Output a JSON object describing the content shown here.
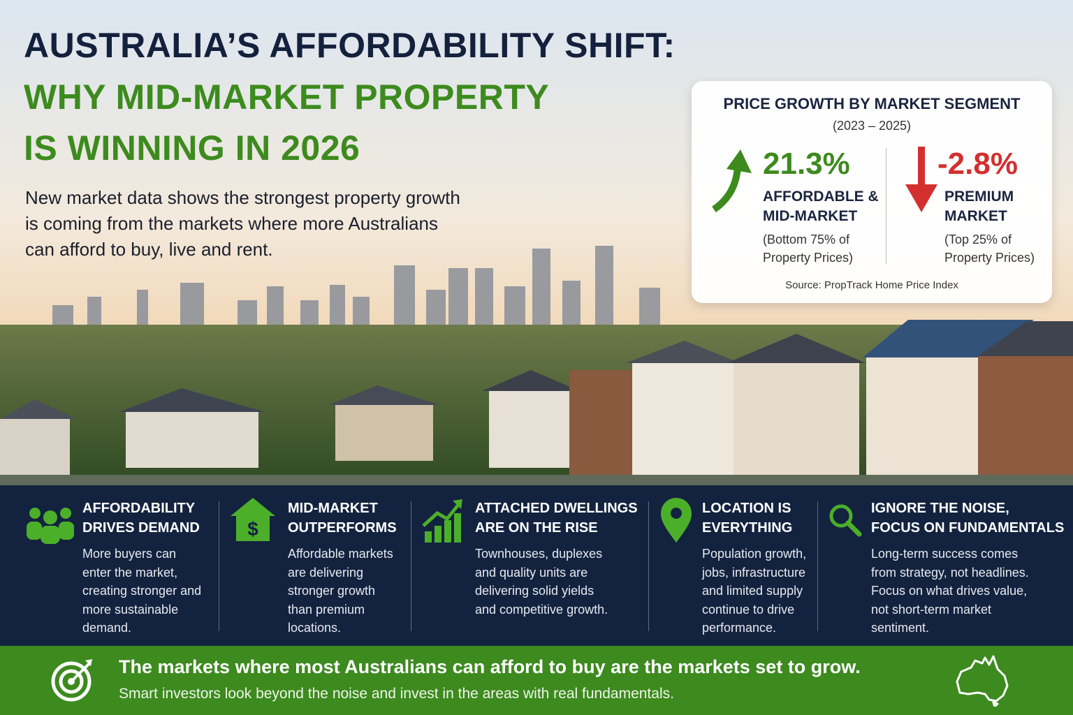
{
  "header": {
    "title": "AUSTRALIA’S AFFORDABILITY SHIFT:",
    "headline": [
      "WHY MID-MARKET PROPERTY",
      "IS WINNING IN 2026"
    ],
    "subtitle": [
      "New market data shows the strongest property growth",
      "is coming from the markets where more Australians",
      "can afford to buy, live and rent."
    ]
  },
  "stat_card": {
    "title": "PRICE GROWTH BY MARKET SEGMENT",
    "period": "(2023 – 2025)",
    "stats": [
      {
        "value": "21.3%",
        "label": [
          "AFFORDABLE &",
          "MID-MARKET"
        ],
        "note": [
          "(Bottom 75% of",
          "Property Prices)"
        ]
      },
      {
        "value": "-2.8%",
        "label": [
          "PREMIUM",
          "MARKET"
        ],
        "note": [
          "(Top 25% of",
          "Property Prices)"
        ]
      }
    ],
    "source": "Source: PropTrack Home Price Index"
  },
  "features": [
    {
      "title": [
        "AFFORDABILITY",
        "DRIVES DEMAND"
      ],
      "body": "More buyers can enter the market, creating stronger and more sustainable demand."
    },
    {
      "title": [
        "MID-MARKET",
        "OUTPERFORMS"
      ],
      "body": "Affordable markets are delivering stronger growth than premium locations."
    },
    {
      "title": [
        "ATTACHED DWELLINGS",
        "ARE ON THE RISE"
      ],
      "body": "Townhouses, duplexes and quality units are delivering solid yields and competitive growth."
    },
    {
      "title": [
        "LOCATION IS",
        "EVERYTHING"
      ],
      "body": "Population growth, jobs, infrastructure and limited supply continue to drive performance."
    },
    {
      "title": [
        "IGNORE THE NOISE,",
        "FOCUS ON FUNDAMENTALS"
      ],
      "body": "Long-term success comes from strategy, not headlines. Focus on what drives value, not short-term market sentiment."
    }
  ],
  "footer": {
    "headline": "The markets where most Australians can afford to buy are the markets set to grow.",
    "subline": "Smart investors look beyond the noise and invest in the areas with real fundamentals."
  }
}
